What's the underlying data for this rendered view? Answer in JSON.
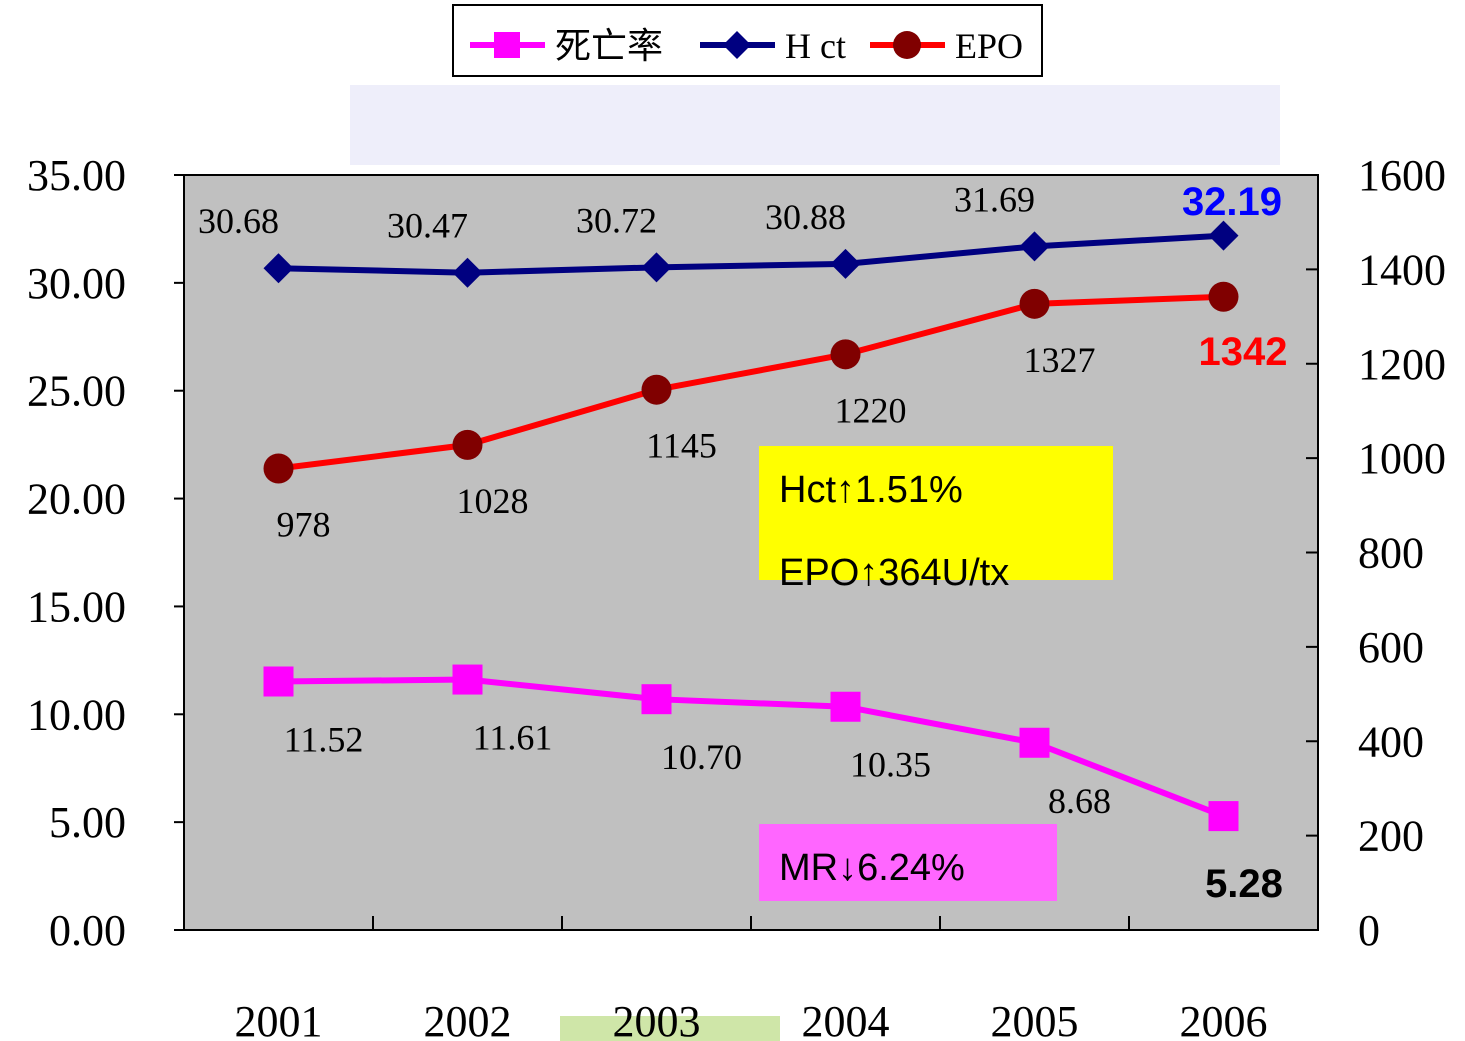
{
  "chart_data": {
    "type": "line",
    "categories": [
      "2001",
      "2002",
      "2003",
      "2004",
      "2005",
      "2006"
    ],
    "ylim": [
      0,
      35
    ],
    "yticks": [
      {
        "value": 0,
        "label": "0.00"
      },
      {
        "value": 5,
        "label": "5.00"
      },
      {
        "value": 10,
        "label": "10.00"
      },
      {
        "value": 15,
        "label": "15.00"
      },
      {
        "value": 20,
        "label": "20.00"
      },
      {
        "value": 25,
        "label": "25.00"
      },
      {
        "value": 30,
        "label": "30.00"
      },
      {
        "value": 35,
        "label": "35.00"
      }
    ],
    "y2lim": [
      0,
      1600
    ],
    "y2ticks": [
      0,
      200,
      400,
      600,
      800,
      1000,
      1200,
      1400,
      1600
    ],
    "series": [
      {
        "name": "死亡率",
        "color": "#ff00ff",
        "marker": "square",
        "values": [
          11.52,
          11.61,
          10.7,
          10.35,
          8.68,
          5.28
        ],
        "value_labels": [
          "11.52",
          "11.61",
          "10.70",
          "10.35",
          "8.68",
          "5.28"
        ]
      },
      {
        "name": "H ct",
        "color": "#000080",
        "marker": "diamond",
        "values": [
          30.68,
          30.47,
          30.72,
          30.88,
          31.69,
          32.19
        ]
      },
      {
        "name": "EPO",
        "color": "#ff0000",
        "marker_color": "#800000",
        "marker": "circle",
        "axis": "y2",
        "values": [
          978,
          1028,
          1145,
          1220,
          1327,
          1342
        ]
      }
    ],
    "annotations": [
      "Hct↑1.51%",
      "EPO↑364U/tx",
      "MR↓6.24%"
    ],
    "legend": "top"
  }
}
